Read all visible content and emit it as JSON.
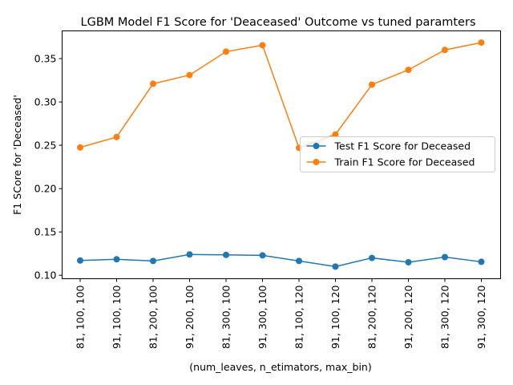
{
  "chart_data": {
    "type": "line",
    "title": "LGBM  Model F1 Score for 'Deaceased' Outcome vs tuned paramters",
    "xlabel": "(num_leaves, n_etimators, max_bin)",
    "ylabel": "F1 SCore for 'Deceased'",
    "categories": [
      "81, 100, 100",
      "91, 100, 100",
      "81, 200, 100",
      "91, 200, 100",
      "81, 300, 100",
      "91, 300, 100",
      "81, 100, 120",
      "91, 100, 120",
      "81, 200, 120",
      "91, 200, 120",
      "81, 300, 120",
      "91, 300, 120"
    ],
    "ylim": [
      0.096,
      0.382
    ],
    "yticks": [
      0.1,
      0.15,
      0.2,
      0.25,
      0.3,
      0.35
    ],
    "ytick_labels": [
      "0.10",
      "0.15",
      "0.20",
      "0.25",
      "0.30",
      "0.35"
    ],
    "grid": false,
    "legend_position": "center-right",
    "series": [
      {
        "name": "Test F1 Score for Deceased",
        "color": "#1f77b4",
        "values": [
          0.117,
          0.1185,
          0.1165,
          0.124,
          0.1235,
          0.123,
          0.1165,
          0.11,
          0.12,
          0.115,
          0.121,
          0.1155
        ]
      },
      {
        "name": "Train F1 Score for Deceased",
        "color": "#ff7f0e",
        "values": [
          0.2475,
          0.2595,
          0.321,
          0.331,
          0.358,
          0.3655,
          0.247,
          0.2625,
          0.32,
          0.337,
          0.36,
          0.3685
        ]
      }
    ]
  }
}
